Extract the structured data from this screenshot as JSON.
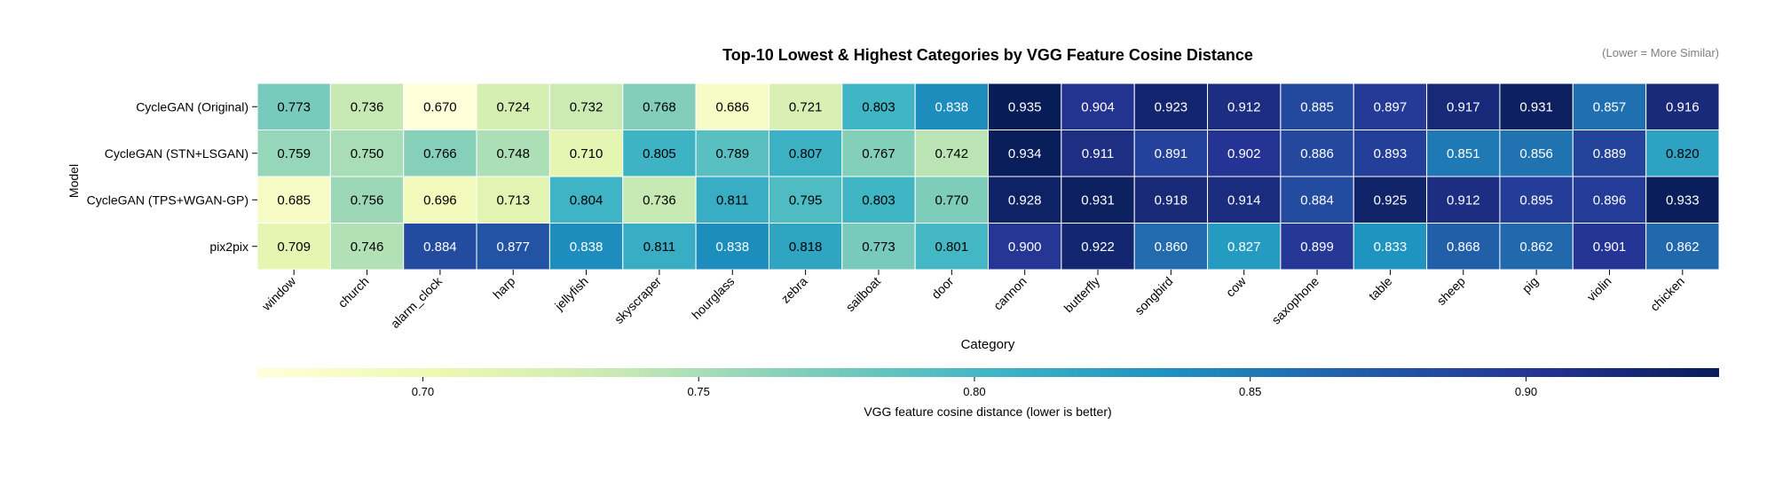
{
  "chart_data": {
    "type": "heatmap",
    "title": "Top-10 Lowest & Highest Categories by VGG Feature Cosine Distance",
    "note": "(Lower = More Similar)",
    "xlabel": "Category",
    "ylabel": "Model",
    "rows": [
      "CycleGAN (Original)",
      "CycleGAN (STN+LSGAN)",
      "CycleGAN (TPS+WGAN-GP)",
      "pix2pix"
    ],
    "columns": [
      "window",
      "church",
      "alarm_clock",
      "harp",
      "jellyfish",
      "skyscraper",
      "hourglass",
      "zebra",
      "sailboat",
      "door",
      "cannon",
      "butterfly",
      "songbird",
      "cow",
      "saxophone",
      "table",
      "sheep",
      "pig",
      "violin",
      "chicken"
    ],
    "values": [
      [
        0.773,
        0.736,
        0.67,
        0.724,
        0.732,
        0.768,
        0.686,
        0.721,
        0.803,
        0.838,
        0.935,
        0.904,
        0.923,
        0.912,
        0.885,
        0.897,
        0.917,
        0.931,
        0.857,
        0.916
      ],
      [
        0.759,
        0.75,
        0.766,
        0.748,
        0.71,
        0.805,
        0.789,
        0.807,
        0.767,
        0.742,
        0.934,
        0.911,
        0.891,
        0.902,
        0.886,
        0.893,
        0.851,
        0.856,
        0.889,
        0.82
      ],
      [
        0.685,
        0.756,
        0.696,
        0.713,
        0.804,
        0.736,
        0.811,
        0.795,
        0.803,
        0.77,
        0.928,
        0.931,
        0.918,
        0.914,
        0.884,
        0.925,
        0.912,
        0.895,
        0.896,
        0.933
      ],
      [
        0.709,
        0.746,
        0.884,
        0.877,
        0.838,
        0.811,
        0.838,
        0.818,
        0.773,
        0.801,
        0.9,
        0.922,
        0.86,
        0.827,
        0.899,
        0.833,
        0.868,
        0.862,
        0.901,
        0.862
      ]
    ],
    "value_format": "0.000",
    "colormap": "YlGnBu",
    "vmin": 0.67,
    "vmax": 0.935,
    "colorbar": {
      "label": "VGG feature cosine distance (lower is better)",
      "ticks": [
        0.7,
        0.75,
        0.8,
        0.85,
        0.9
      ],
      "tick_labels": [
        "0.70",
        "0.75",
        "0.80",
        "0.85",
        "0.90"
      ],
      "orientation": "horizontal"
    },
    "grid": false,
    "legend": "none"
  },
  "colors": {
    "ylgnbu": [
      "#ffffd9",
      "#edf8b1",
      "#c7e9b4",
      "#7fcdbb",
      "#41b6c4",
      "#1d91c0",
      "#225ea8",
      "#253494",
      "#081d58"
    ],
    "cell_border": "#ffffff",
    "text_dark": "#000000",
    "text_light": "#ffffff",
    "note": "#7f7f7f"
  }
}
